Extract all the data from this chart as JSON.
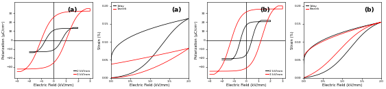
{
  "fig_width": 5.63,
  "fig_height": 1.3,
  "dpi": 100,
  "panels": [
    {
      "label": "(a)",
      "type": "PE",
      "xlim": [
        -3.2,
        3.2
      ],
      "ylim": [
        -42,
        42
      ],
      "xlabel": "Electric Field (kV/mm)",
      "ylabel": "Polarization (μC/cm²)",
      "xticks": [
        -3,
        -2,
        -1,
        0,
        1,
        2,
        3
      ],
      "yticks": [
        -30,
        -20,
        -10,
        0,
        10,
        20,
        30
      ],
      "legend": [
        "2 kV/mm",
        "3 kV/mm"
      ],
      "legend_colors": [
        "black",
        "red"
      ],
      "legend_loc": "lower right",
      "curves": [
        {
          "color": "black",
          "label": "2 kV/mm",
          "E_max": 2.0,
          "P_sat": 14,
          "P_rem": 6,
          "E_c": 0.7,
          "steepness": 3.5
        },
        {
          "color": "red",
          "label": "3 kV/mm",
          "E_max": 3.0,
          "P_sat": 35,
          "P_rem": 18,
          "E_c": 1.1,
          "steepness": 3.0
        }
      ]
    },
    {
      "label": "(a)",
      "type": "SE",
      "xlim": [
        0,
        2.0
      ],
      "ylim": [
        0.0,
        0.21
      ],
      "xlabel": "Electric Field (kV/mm)",
      "ylabel": "Strain (%)",
      "xticks": [
        0.0,
        0.5,
        1.0,
        1.5,
        2.0
      ],
      "yticks": [
        0.0,
        0.05,
        0.1,
        0.15,
        0.2
      ],
      "legend": [
        "1day",
        "1week"
      ],
      "legend_colors": [
        "black",
        "red"
      ],
      "legend_loc": "upper left",
      "curves": [
        {
          "color": "black",
          "label": "1day",
          "E_max": 2.0,
          "S_max": 0.165,
          "S_min_ret": 0.045,
          "E_knee": 1.3,
          "type": "butterfly_steep"
        },
        {
          "color": "red",
          "label": "1week",
          "E_max": 2.0,
          "S_max": 0.082,
          "S_min_ret": 0.038,
          "E_knee": 1.0,
          "type": "oval"
        }
      ]
    },
    {
      "label": "(b)",
      "type": "PE",
      "xlim": [
        -3.2,
        3.2
      ],
      "ylim": [
        -42,
        42
      ],
      "xlabel": "Electric Field (kV/mm)",
      "ylabel": "Polarization (μC/cm²)",
      "xticks": [
        -3,
        -2,
        -1,
        0,
        1,
        2,
        3
      ],
      "yticks": [
        -30,
        -20,
        -10,
        0,
        10,
        20,
        30
      ],
      "legend": [
        "2 kV/mm",
        "3 kV/mm"
      ],
      "legend_colors": [
        "black",
        "red"
      ],
      "legend_loc": "lower right",
      "curves": [
        {
          "color": "black",
          "label": "2 kV/mm",
          "E_max": 2.0,
          "P_sat": 22,
          "P_rem": 10,
          "E_c": 0.5,
          "steepness": 4.5
        },
        {
          "color": "red",
          "label": "3 kV/mm",
          "E_max": 3.0,
          "P_sat": 38,
          "P_rem": 22,
          "E_c": 1.3,
          "steepness": 3.5
        }
      ]
    },
    {
      "label": "(b)",
      "type": "SE",
      "xlim": [
        0,
        2.0
      ],
      "ylim": [
        0.0,
        0.21
      ],
      "xlabel": "Electric Field (kV/mm)",
      "ylabel": "Strain (%)",
      "xticks": [
        0.0,
        0.5,
        1.0,
        1.5,
        2.0
      ],
      "yticks": [
        0.0,
        0.05,
        0.1,
        0.15,
        0.2
      ],
      "legend": [
        "1day",
        "8week"
      ],
      "legend_colors": [
        "black",
        "red"
      ],
      "legend_loc": "upper left",
      "curves": [
        {
          "color": "black",
          "label": "1day",
          "E_max": 2.0,
          "S_max": 0.155,
          "S_min_ret": 0.038,
          "E_knee": 1.2,
          "type": "butterfly_steep"
        },
        {
          "color": "red",
          "label": "8week",
          "E_max": 2.0,
          "S_max": 0.155,
          "S_min_ret": 0.055,
          "E_knee": 0.9,
          "type": "butterfly_gentle"
        }
      ]
    }
  ]
}
